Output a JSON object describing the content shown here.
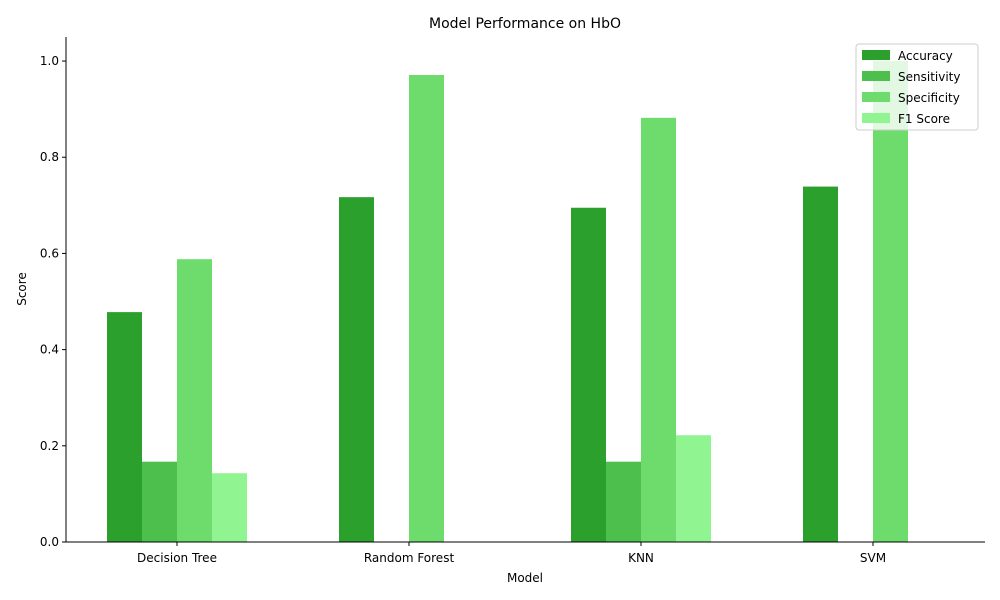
{
  "chart_data": {
    "type": "bar",
    "title": "Model Performance on HbO",
    "xlabel": "Model",
    "ylabel": "Score",
    "categories": [
      "Decision Tree",
      "Random Forest",
      "KNN",
      "SVM"
    ],
    "series": [
      {
        "name": "Accuracy",
        "values": [
          0.478,
          0.717,
          0.695,
          0.739
        ],
        "color": "#2ca02c"
      },
      {
        "name": "Sensitivity",
        "values": [
          0.167,
          0.0,
          0.167,
          0.0
        ],
        "color": "#4cbf4c"
      },
      {
        "name": "Specificity",
        "values": [
          0.588,
          0.971,
          0.882,
          1.0
        ],
        "color": "#6ddc6d"
      },
      {
        "name": "F1 Score",
        "values": [
          0.143,
          0.0,
          0.222,
          0.0
        ],
        "color": "#90f590"
      }
    ],
    "ylim": [
      0,
      1.05
    ],
    "yticks": [
      0.0,
      0.2,
      0.4,
      0.6,
      0.8,
      1.0
    ],
    "ytick_labels": [
      "0.0",
      "0.2",
      "0.4",
      "0.6",
      "0.8",
      "1.0"
    ],
    "grid": false,
    "legend_position": "top-right"
  }
}
